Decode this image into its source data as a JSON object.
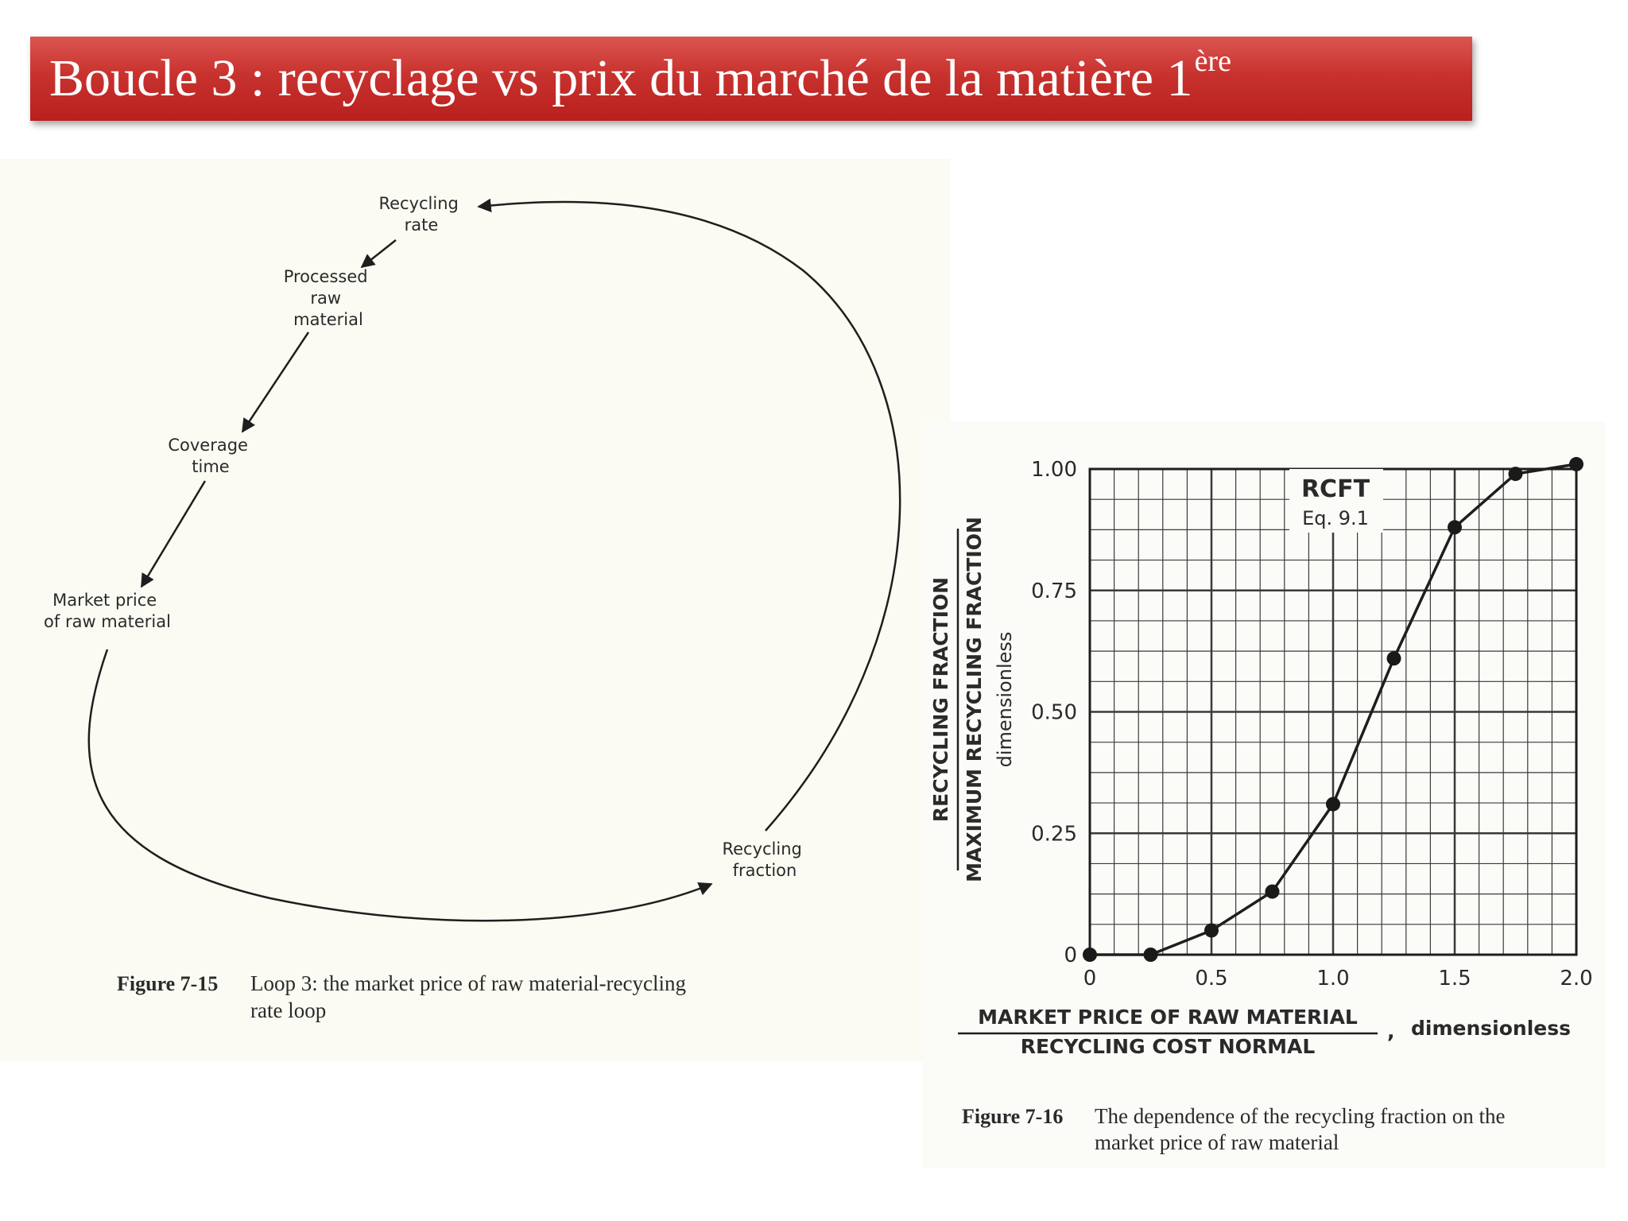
{
  "slide": {
    "title": "Boucle 3 : recyclage vs prix du marché de la matière 1",
    "title_sup": "ère",
    "title_bg": "#c8322e"
  },
  "loop_figure": {
    "nodes": {
      "recycling_rate": [
        "Recycling",
        "rate"
      ],
      "processed_raw_material": [
        "Processed",
        "raw",
        "material"
      ],
      "coverage_time": [
        "Coverage",
        "time"
      ],
      "market_price": [
        "Market price",
        "of raw material"
      ],
      "recycling_fraction": [
        "Recycling",
        "fraction"
      ]
    },
    "caption_number": "Figure 7-15",
    "caption_lines": [
      "Loop 3: the market price of raw material-recycling",
      "rate loop"
    ]
  },
  "chart_data": {
    "type": "line",
    "x": [
      0,
      0.25,
      0.5,
      0.75,
      1.0,
      1.25,
      1.5,
      1.75,
      2.0
    ],
    "y": [
      0,
      0,
      0.05,
      0.13,
      0.31,
      0.61,
      0.88,
      0.99,
      1.01
    ],
    "xlim": [
      0,
      2.0
    ],
    "ylim": [
      0,
      1.0
    ],
    "x_ticks": [
      "0",
      "0.5",
      "1.0",
      "1.5",
      "2.0"
    ],
    "y_ticks": [
      "0",
      "0.25",
      "0.50",
      "0.75",
      "1.00"
    ],
    "ylabel_numerator": "RECYCLING FRACTION",
    "ylabel_denominator": "MAXIMUM RECYCLING FRACTION",
    "ylabel_suffix": "dimensionless",
    "xlabel_numerator": "MARKET PRICE OF RAW MATERIAL",
    "xlabel_denominator": "RECYCLING COST NORMAL",
    "xlabel_suffix": "dimensionless",
    "annotation_title": "RCFT",
    "annotation_sub": "Eq. 9.1",
    "grid": true,
    "caption_number": "Figure 7-16",
    "caption_lines": [
      "The dependence of the recycling fraction on the",
      "market price of raw material"
    ]
  }
}
